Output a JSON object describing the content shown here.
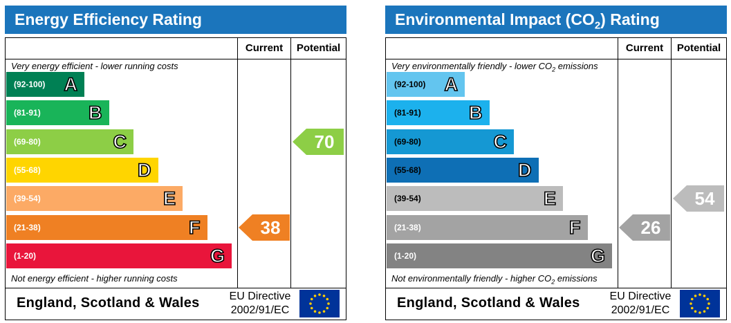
{
  "chart_data": [
    {
      "type": "table",
      "title": "Energy Efficiency Rating",
      "columns": [
        "Current",
        "Potential"
      ],
      "top_caption": "Very energy efficient - lower running costs",
      "bottom_caption": "Not energy efficient - higher running costs",
      "bands": [
        {
          "range": "(92-100)",
          "letter": "A",
          "color": "#008054"
        },
        {
          "range": "(81-91)",
          "letter": "B",
          "color": "#19b459"
        },
        {
          "range": "(69-80)",
          "letter": "C",
          "color": "#8dce46"
        },
        {
          "range": "(55-68)",
          "letter": "D",
          "color": "#ffd500"
        },
        {
          "range": "(39-54)",
          "letter": "E",
          "color": "#fcaa65"
        },
        {
          "range": "(21-38)",
          "letter": "F",
          "color": "#ef8023"
        },
        {
          "range": "(1-20)",
          "letter": "G",
          "color": "#e9153b"
        }
      ],
      "current": {
        "value": 38,
        "band": "F",
        "color": "#ef8023"
      },
      "potential": {
        "value": 70,
        "band": "C",
        "color": "#8dce46"
      },
      "footer_region": "England, Scotland & Wales",
      "footer_directive_line1": "EU Directive",
      "footer_directive_line2": "2002/91/EC"
    },
    {
      "type": "table",
      "title_main": "Environmental Impact (CO",
      "title_sub": "2",
      "title_tail": ") Rating",
      "columns": [
        "Current",
        "Potential"
      ],
      "top_caption_main": "Very environmentally friendly - lower CO",
      "top_caption_sub": "2",
      "top_caption_tail": " emissions",
      "bottom_caption_main": "Not environmentally friendly - higher CO",
      "bottom_caption_sub": "2",
      "bottom_caption_tail": " emissions",
      "bands": [
        {
          "range": "(92-100)",
          "letter": "A",
          "color": "#63c5ef",
          "range_color": "#000000"
        },
        {
          "range": "(81-91)",
          "letter": "B",
          "color": "#1cb1ed",
          "range_color": "#000000"
        },
        {
          "range": "(69-80)",
          "letter": "C",
          "color": "#1598d3",
          "range_color": "#000000"
        },
        {
          "range": "(55-68)",
          "letter": "D",
          "color": "#0e6fb5",
          "range_color": "#000000"
        },
        {
          "range": "(39-54)",
          "letter": "E",
          "color": "#bcbcbc",
          "range_color": "#000000"
        },
        {
          "range": "(21-38)",
          "letter": "F",
          "color": "#a3a3a3",
          "range_color": "#ffffff"
        },
        {
          "range": "(1-20)",
          "letter": "G",
          "color": "#838383",
          "range_color": "#ffffff"
        }
      ],
      "current": {
        "value": 26,
        "band": "F",
        "color": "#a3a3a3"
      },
      "potential": {
        "value": 54,
        "band": "E",
        "color": "#bcbcbc"
      },
      "footer_region": "England, Scotland & Wales",
      "footer_directive_line1": "EU Directive",
      "footer_directive_line2": "2002/91/EC"
    }
  ],
  "colors": {
    "title_bar": "#1b75bc",
    "eu_flag": "#003399",
    "eu_stars": "#ffcc00"
  },
  "icons": {
    "eu_flag": "eu-flag-icon"
  }
}
